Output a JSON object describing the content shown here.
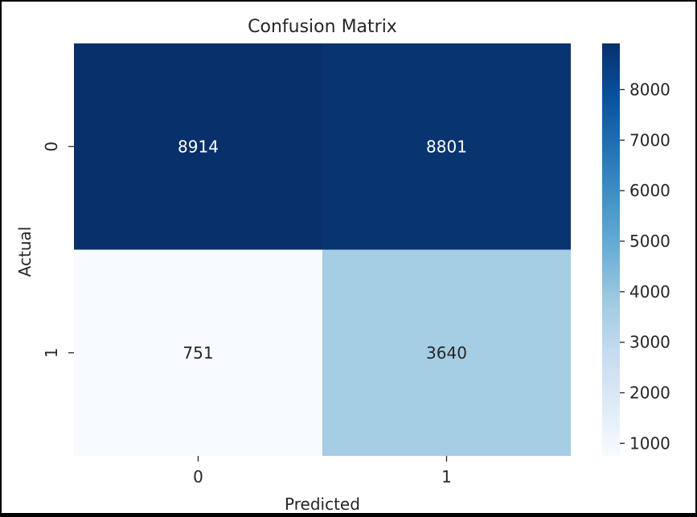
{
  "chart_data": {
    "type": "heatmap",
    "title": "Confusion Matrix",
    "xlabel": "Predicted",
    "ylabel": "Actual",
    "x_categories": [
      "0",
      "1"
    ],
    "y_categories": [
      "0",
      "1"
    ],
    "values": [
      [
        8914,
        8801
      ],
      [
        751,
        3640
      ]
    ],
    "colormap": "Blues",
    "colorbar": {
      "range": [
        751,
        8914
      ],
      "ticks": [
        1000,
        2000,
        3000,
        4000,
        5000,
        6000,
        7000,
        8000
      ],
      "tick_labels": [
        "1000",
        "2000",
        "3000",
        "4000",
        "5000",
        "6000",
        "7000",
        "8000"
      ]
    },
    "annotation_colors": {
      "dark": "#ffffff",
      "light": "#262626"
    }
  }
}
